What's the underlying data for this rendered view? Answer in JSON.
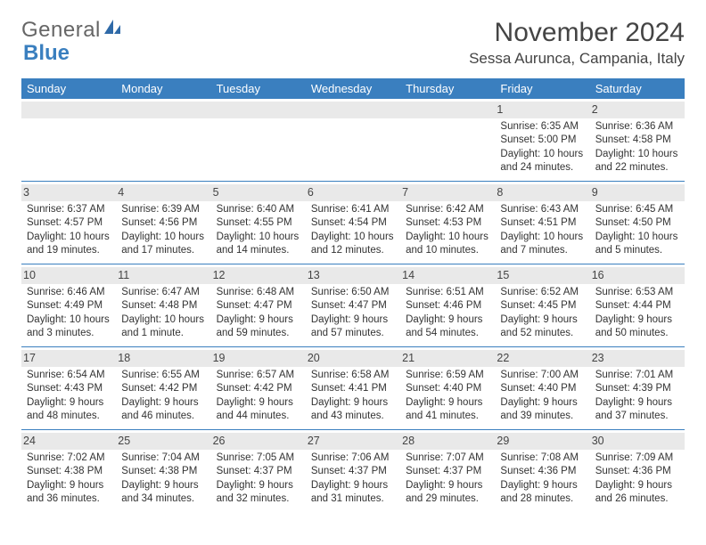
{
  "brand": {
    "part1": "General",
    "part2": "Blue"
  },
  "header": {
    "month_year": "November 2024",
    "location": "Sessa Aurunca, Campania, Italy"
  },
  "colors": {
    "header_bg": "#3a7fbf",
    "header_text": "#ffffff",
    "daynum_bg": "#e9e9e9",
    "row_border": "#3a7fbf"
  },
  "weekdays": [
    "Sunday",
    "Monday",
    "Tuesday",
    "Wednesday",
    "Thursday",
    "Friday",
    "Saturday"
  ],
  "weeks": [
    [
      null,
      null,
      null,
      null,
      null,
      {
        "day": "1",
        "sunrise": "Sunrise: 6:35 AM",
        "sunset": "Sunset: 5:00 PM",
        "daylight": "Daylight: 10 hours and 24 minutes."
      },
      {
        "day": "2",
        "sunrise": "Sunrise: 6:36 AM",
        "sunset": "Sunset: 4:58 PM",
        "daylight": "Daylight: 10 hours and 22 minutes."
      }
    ],
    [
      {
        "day": "3",
        "sunrise": "Sunrise: 6:37 AM",
        "sunset": "Sunset: 4:57 PM",
        "daylight": "Daylight: 10 hours and 19 minutes."
      },
      {
        "day": "4",
        "sunrise": "Sunrise: 6:39 AM",
        "sunset": "Sunset: 4:56 PM",
        "daylight": "Daylight: 10 hours and 17 minutes."
      },
      {
        "day": "5",
        "sunrise": "Sunrise: 6:40 AM",
        "sunset": "Sunset: 4:55 PM",
        "daylight": "Daylight: 10 hours and 14 minutes."
      },
      {
        "day": "6",
        "sunrise": "Sunrise: 6:41 AM",
        "sunset": "Sunset: 4:54 PM",
        "daylight": "Daylight: 10 hours and 12 minutes."
      },
      {
        "day": "7",
        "sunrise": "Sunrise: 6:42 AM",
        "sunset": "Sunset: 4:53 PM",
        "daylight": "Daylight: 10 hours and 10 minutes."
      },
      {
        "day": "8",
        "sunrise": "Sunrise: 6:43 AM",
        "sunset": "Sunset: 4:51 PM",
        "daylight": "Daylight: 10 hours and 7 minutes."
      },
      {
        "day": "9",
        "sunrise": "Sunrise: 6:45 AM",
        "sunset": "Sunset: 4:50 PM",
        "daylight": "Daylight: 10 hours and 5 minutes."
      }
    ],
    [
      {
        "day": "10",
        "sunrise": "Sunrise: 6:46 AM",
        "sunset": "Sunset: 4:49 PM",
        "daylight": "Daylight: 10 hours and 3 minutes."
      },
      {
        "day": "11",
        "sunrise": "Sunrise: 6:47 AM",
        "sunset": "Sunset: 4:48 PM",
        "daylight": "Daylight: 10 hours and 1 minute."
      },
      {
        "day": "12",
        "sunrise": "Sunrise: 6:48 AM",
        "sunset": "Sunset: 4:47 PM",
        "daylight": "Daylight: 9 hours and 59 minutes."
      },
      {
        "day": "13",
        "sunrise": "Sunrise: 6:50 AM",
        "sunset": "Sunset: 4:47 PM",
        "daylight": "Daylight: 9 hours and 57 minutes."
      },
      {
        "day": "14",
        "sunrise": "Sunrise: 6:51 AM",
        "sunset": "Sunset: 4:46 PM",
        "daylight": "Daylight: 9 hours and 54 minutes."
      },
      {
        "day": "15",
        "sunrise": "Sunrise: 6:52 AM",
        "sunset": "Sunset: 4:45 PM",
        "daylight": "Daylight: 9 hours and 52 minutes."
      },
      {
        "day": "16",
        "sunrise": "Sunrise: 6:53 AM",
        "sunset": "Sunset: 4:44 PM",
        "daylight": "Daylight: 9 hours and 50 minutes."
      }
    ],
    [
      {
        "day": "17",
        "sunrise": "Sunrise: 6:54 AM",
        "sunset": "Sunset: 4:43 PM",
        "daylight": "Daylight: 9 hours and 48 minutes."
      },
      {
        "day": "18",
        "sunrise": "Sunrise: 6:55 AM",
        "sunset": "Sunset: 4:42 PM",
        "daylight": "Daylight: 9 hours and 46 minutes."
      },
      {
        "day": "19",
        "sunrise": "Sunrise: 6:57 AM",
        "sunset": "Sunset: 4:42 PM",
        "daylight": "Daylight: 9 hours and 44 minutes."
      },
      {
        "day": "20",
        "sunrise": "Sunrise: 6:58 AM",
        "sunset": "Sunset: 4:41 PM",
        "daylight": "Daylight: 9 hours and 43 minutes."
      },
      {
        "day": "21",
        "sunrise": "Sunrise: 6:59 AM",
        "sunset": "Sunset: 4:40 PM",
        "daylight": "Daylight: 9 hours and 41 minutes."
      },
      {
        "day": "22",
        "sunrise": "Sunrise: 7:00 AM",
        "sunset": "Sunset: 4:40 PM",
        "daylight": "Daylight: 9 hours and 39 minutes."
      },
      {
        "day": "23",
        "sunrise": "Sunrise: 7:01 AM",
        "sunset": "Sunset: 4:39 PM",
        "daylight": "Daylight: 9 hours and 37 minutes."
      }
    ],
    [
      {
        "day": "24",
        "sunrise": "Sunrise: 7:02 AM",
        "sunset": "Sunset: 4:38 PM",
        "daylight": "Daylight: 9 hours and 36 minutes."
      },
      {
        "day": "25",
        "sunrise": "Sunrise: 7:04 AM",
        "sunset": "Sunset: 4:38 PM",
        "daylight": "Daylight: 9 hours and 34 minutes."
      },
      {
        "day": "26",
        "sunrise": "Sunrise: 7:05 AM",
        "sunset": "Sunset: 4:37 PM",
        "daylight": "Daylight: 9 hours and 32 minutes."
      },
      {
        "day": "27",
        "sunrise": "Sunrise: 7:06 AM",
        "sunset": "Sunset: 4:37 PM",
        "daylight": "Daylight: 9 hours and 31 minutes."
      },
      {
        "day": "28",
        "sunrise": "Sunrise: 7:07 AM",
        "sunset": "Sunset: 4:37 PM",
        "daylight": "Daylight: 9 hours and 29 minutes."
      },
      {
        "day": "29",
        "sunrise": "Sunrise: 7:08 AM",
        "sunset": "Sunset: 4:36 PM",
        "daylight": "Daylight: 9 hours and 28 minutes."
      },
      {
        "day": "30",
        "sunrise": "Sunrise: 7:09 AM",
        "sunset": "Sunset: 4:36 PM",
        "daylight": "Daylight: 9 hours and 26 minutes."
      }
    ]
  ]
}
